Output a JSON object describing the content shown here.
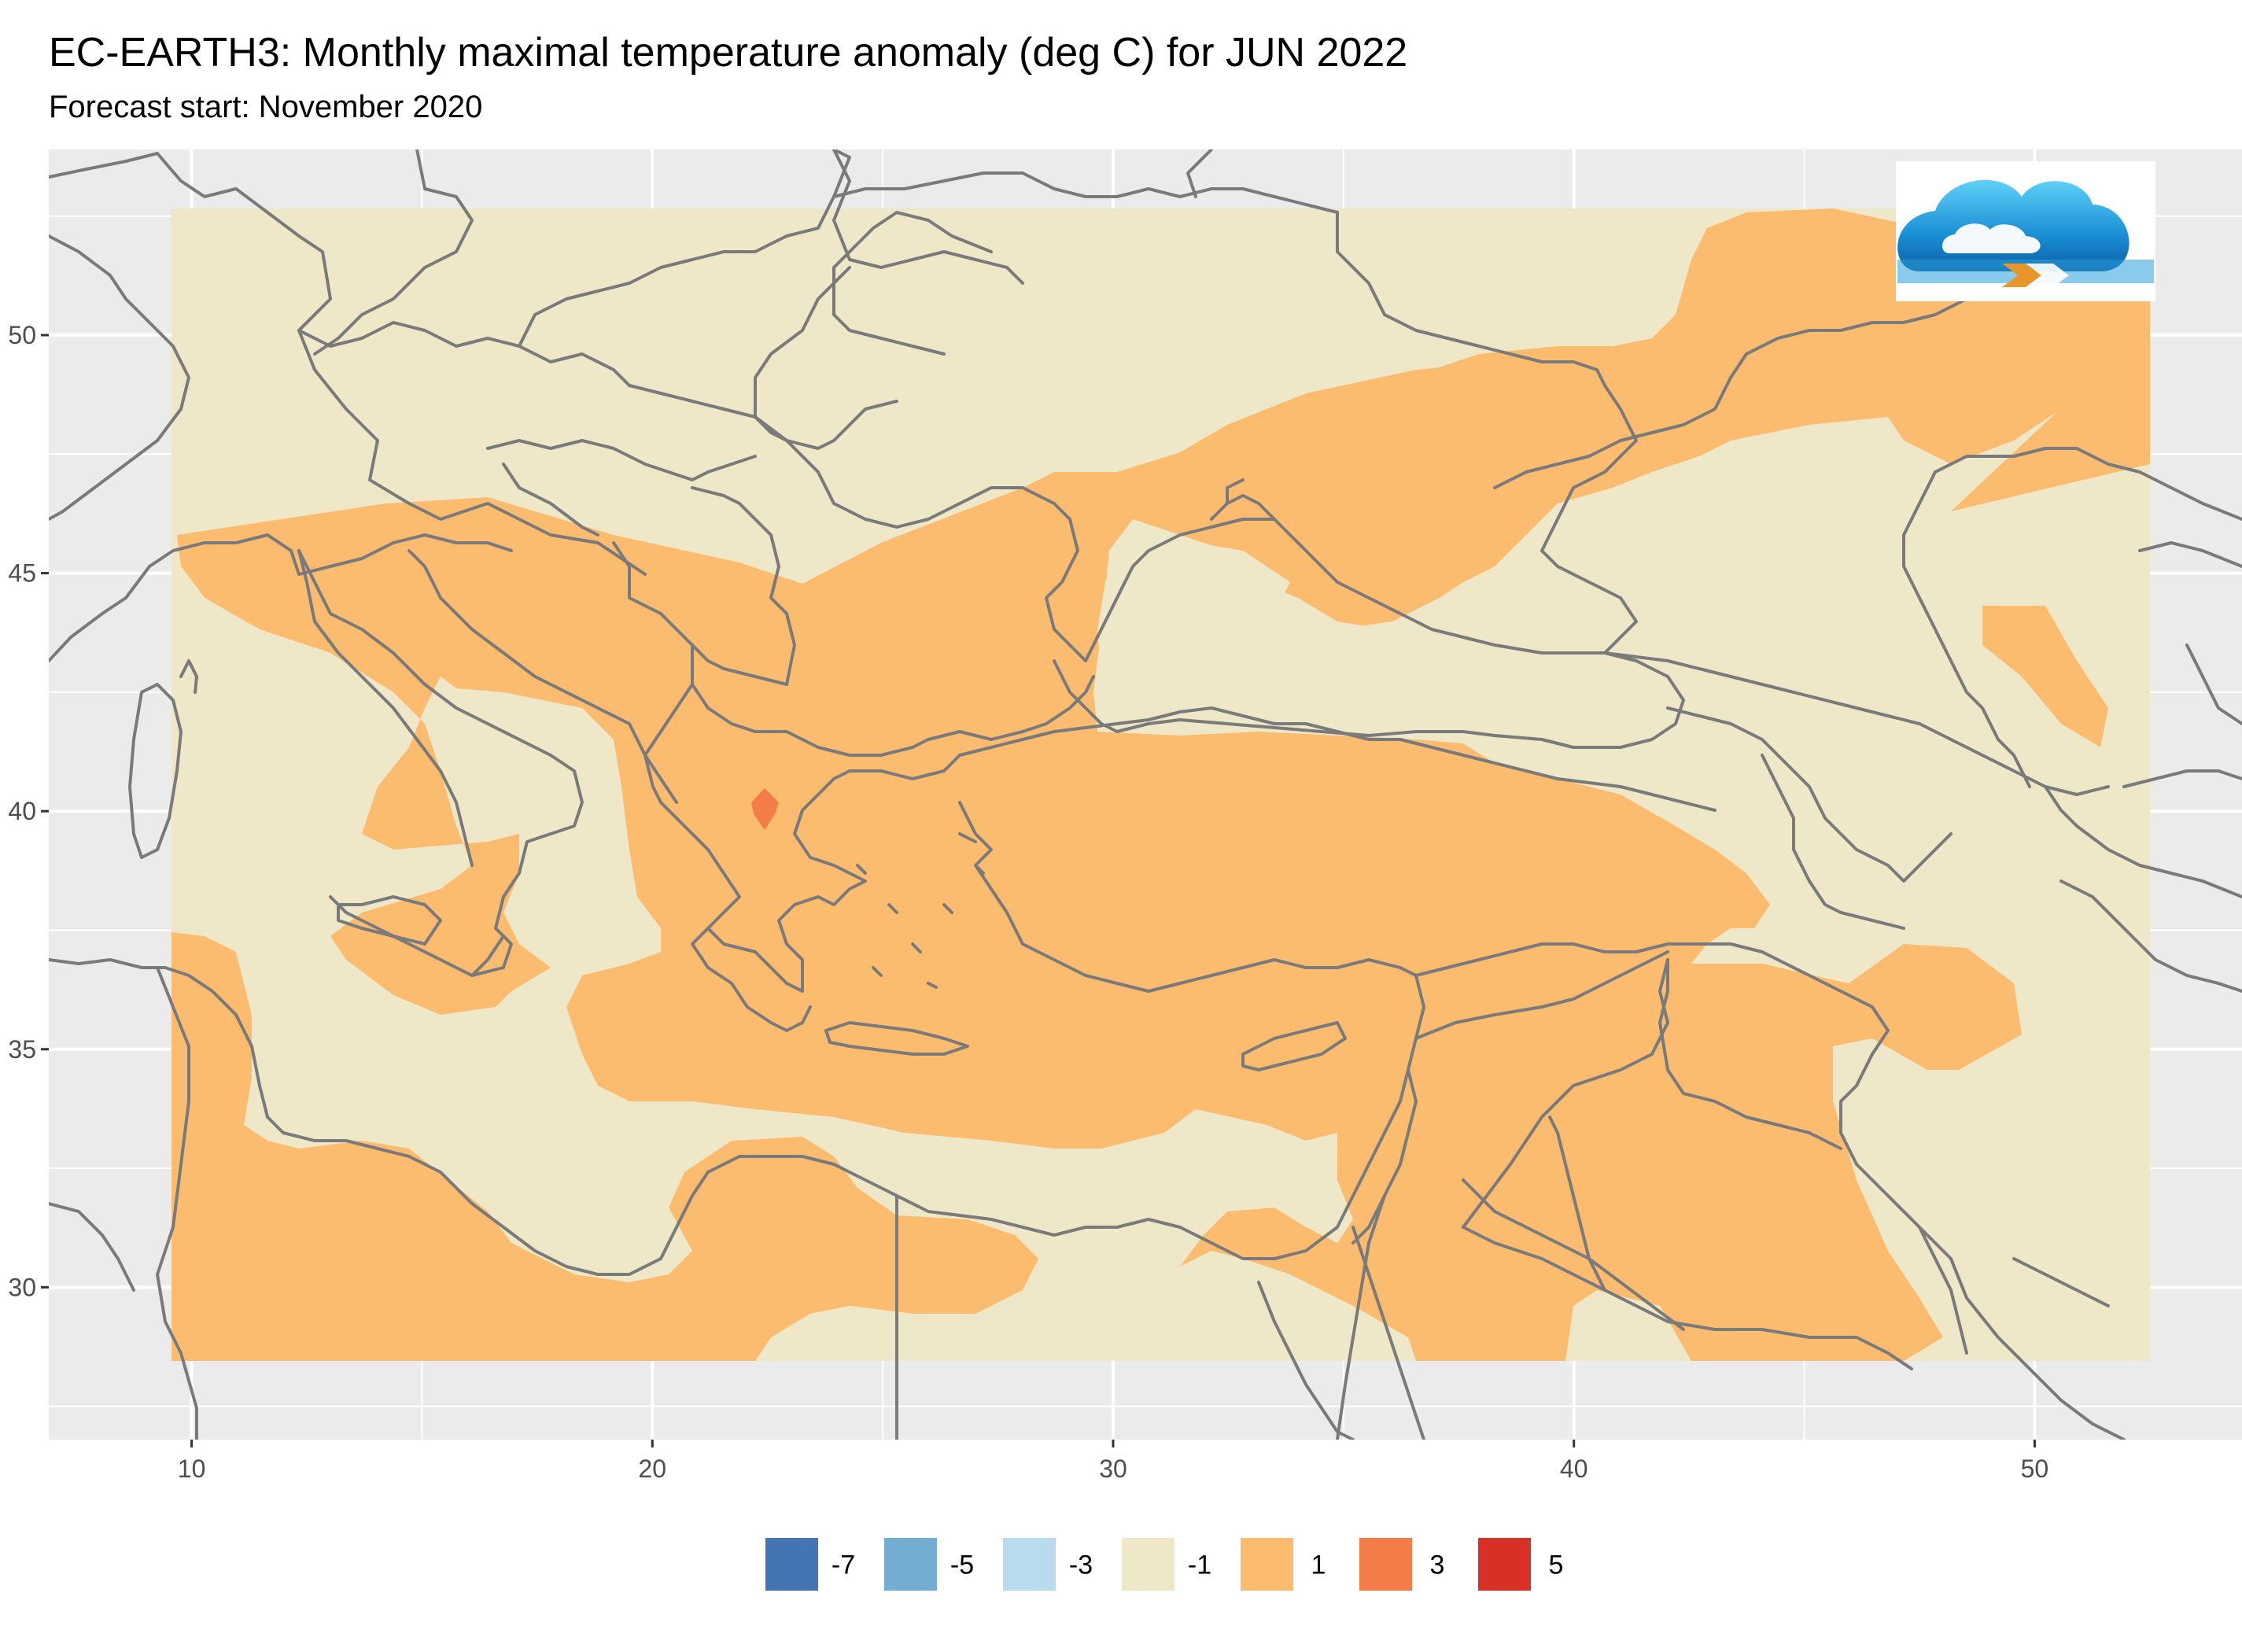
{
  "title": "EC-EARTH3: Monthly maximal temperature anomaly (deg C) for JUN 2022",
  "subtitle": "Forecast start: November 2020",
  "map": {
    "lon_range": [
      6.9,
      54.5
    ],
    "lat_range": [
      26.8,
      53.9
    ],
    "x_ticks": [
      10,
      20,
      30,
      40,
      50
    ],
    "y_ticks": [
      30,
      35,
      40,
      45,
      50
    ],
    "x_tick_labels": [
      "10",
      "20",
      "30",
      "40",
      "50"
    ],
    "y_tick_labels": [
      "30",
      "35",
      "40",
      "45",
      "50"
    ],
    "data_extent": {
      "lon": [
        9.5,
        51.6
      ],
      "lat": [
        28.5,
        53.0
      ]
    },
    "panel_color": "#ebebeb",
    "grid_color": "#ffffff",
    "border_color": "#7a7a7a",
    "base_color": "#eee8c8",
    "warm_color": "#fcbc6f",
    "hot_color": "#f47c48"
  },
  "legend": {
    "items": [
      {
        "label": "-7",
        "color": "#4574b4"
      },
      {
        "label": "-5",
        "color": "#74add1"
      },
      {
        "label": "-3",
        "color": "#b8dcee"
      },
      {
        "label": "-1",
        "color": "#eee8c8"
      },
      {
        "label": "1",
        "color": "#fcbc6f"
      },
      {
        "label": "3",
        "color": "#f47c48"
      },
      {
        "label": "5",
        "color": "#d73027"
      }
    ]
  },
  "logo": {
    "icon": "cloud-logo-icon"
  }
}
